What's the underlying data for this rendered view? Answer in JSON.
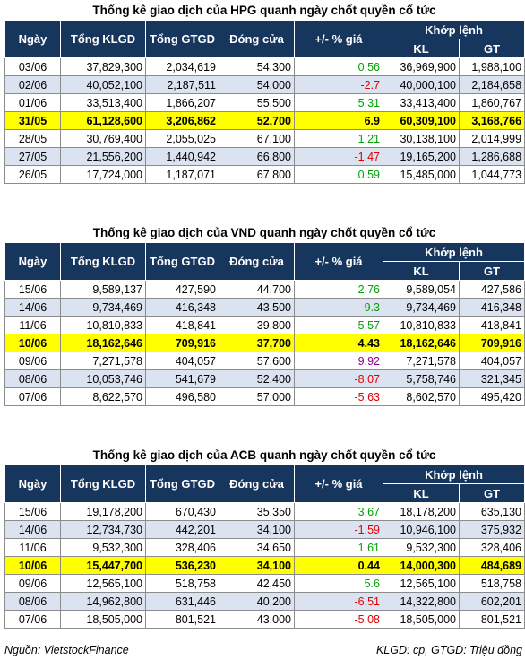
{
  "headers": {
    "date": "Ngày",
    "total_volume": "Tổng KLGD",
    "total_value": "Tổng GTGD",
    "close": "Đóng cửa",
    "change": "+/- % giá",
    "matched": "Khớp lệnh",
    "kl": "KL",
    "gt": "GT"
  },
  "tables": [
    {
      "title": "Thống kê giao dịch của HPG quanh ngày chốt quyền cổ tức",
      "highlight_index": 3,
      "rows": [
        {
          "date": "03/06",
          "klgd": "37,829,300",
          "gtgd": "2,034,619",
          "close": "54,300",
          "change": "0.56",
          "trend": "pos",
          "kl": "36,969,900",
          "gt": "1,988,100"
        },
        {
          "date": "02/06",
          "klgd": "40,052,100",
          "gtgd": "2,187,511",
          "close": "54,000",
          "change": "-2.7",
          "trend": "neg",
          "kl": "40,000,100",
          "gt": "2,184,658"
        },
        {
          "date": "01/06",
          "klgd": "33,513,400",
          "gtgd": "1,866,207",
          "close": "55,500",
          "change": "5.31",
          "trend": "pos",
          "kl": "33,413,400",
          "gt": "1,860,767"
        },
        {
          "date": "31/05",
          "klgd": "61,128,600",
          "gtgd": "3,206,862",
          "close": "52,700",
          "change": "6.9",
          "trend": "pos",
          "kl": "60,309,100",
          "gt": "3,168,766"
        },
        {
          "date": "28/05",
          "klgd": "30,769,400",
          "gtgd": "2,055,025",
          "close": "67,100",
          "change": "1.21",
          "trend": "pos",
          "kl": "30,138,100",
          "gt": "2,014,999"
        },
        {
          "date": "27/05",
          "klgd": "21,556,200",
          "gtgd": "1,440,942",
          "close": "66,800",
          "change": "-1.47",
          "trend": "neg",
          "kl": "19,165,200",
          "gt": "1,286,688"
        },
        {
          "date": "26/05",
          "klgd": "17,724,000",
          "gtgd": "1,187,071",
          "close": "67,800",
          "change": "0.59",
          "trend": "pos",
          "kl": "15,485,000",
          "gt": "1,044,773"
        }
      ]
    },
    {
      "title": "Thống kê giao dịch của VND quanh ngày chốt quyền cổ tức",
      "highlight_index": 3,
      "rows": [
        {
          "date": "15/06",
          "klgd": "9,589,137",
          "gtgd": "427,590",
          "close": "44,700",
          "change": "2.76",
          "trend": "pos",
          "kl": "9,589,054",
          "gt": "427,586"
        },
        {
          "date": "14/06",
          "klgd": "9,734,469",
          "gtgd": "416,348",
          "close": "43,500",
          "change": "9.3",
          "trend": "pos",
          "kl": "9,734,469",
          "gt": "416,348"
        },
        {
          "date": "11/06",
          "klgd": "10,810,833",
          "gtgd": "418,841",
          "close": "39,800",
          "change": "5.57",
          "trend": "pos",
          "kl": "10,810,833",
          "gt": "418,841"
        },
        {
          "date": "10/06",
          "klgd": "18,162,646",
          "gtgd": "709,916",
          "close": "37,700",
          "change": "4.43",
          "trend": "pos",
          "kl": "18,162,646",
          "gt": "709,916"
        },
        {
          "date": "09/06",
          "klgd": "7,271,578",
          "gtgd": "404,057",
          "close": "57,600",
          "change": "9.92",
          "trend": "ceil",
          "kl": "7,271,578",
          "gt": "404,057"
        },
        {
          "date": "08/06",
          "klgd": "10,053,746",
          "gtgd": "541,679",
          "close": "52,400",
          "change": "-8.07",
          "trend": "neg",
          "kl": "5,758,746",
          "gt": "321,345"
        },
        {
          "date": "07/06",
          "klgd": "8,622,570",
          "gtgd": "496,580",
          "close": "57,000",
          "change": "-5.63",
          "trend": "neg",
          "kl": "8,602,570",
          "gt": "495,420"
        }
      ]
    },
    {
      "title": "Thống kê giao dịch của ACB quanh ngày chốt quyền cổ tức",
      "highlight_index": 3,
      "rows": [
        {
          "date": "15/06",
          "klgd": "19,178,200",
          "gtgd": "670,430",
          "close": "35,350",
          "change": "3.67",
          "trend": "pos",
          "kl": "18,178,200",
          "gt": "635,130"
        },
        {
          "date": "14/06",
          "klgd": "12,734,730",
          "gtgd": "442,201",
          "close": "34,100",
          "change": "-1.59",
          "trend": "neg",
          "kl": "10,946,100",
          "gt": "375,932"
        },
        {
          "date": "11/06",
          "klgd": "9,532,300",
          "gtgd": "328,406",
          "close": "34,650",
          "change": "1.61",
          "trend": "pos",
          "kl": "9,532,300",
          "gt": "328,406"
        },
        {
          "date": "10/06",
          "klgd": "15,447,700",
          "gtgd": "536,230",
          "close": "34,100",
          "change": "0.44",
          "trend": "pos",
          "kl": "14,000,300",
          "gt": "484,689"
        },
        {
          "date": "09/06",
          "klgd": "12,565,100",
          "gtgd": "518,758",
          "close": "42,450",
          "change": "5.6",
          "trend": "pos",
          "kl": "12,565,100",
          "gt": "518,758"
        },
        {
          "date": "08/06",
          "klgd": "14,962,800",
          "gtgd": "631,446",
          "close": "40,200",
          "change": "-6.51",
          "trend": "neg",
          "kl": "14,322,800",
          "gt": "602,201"
        },
        {
          "date": "07/06",
          "klgd": "18,505,000",
          "gtgd": "801,521",
          "close": "43,000",
          "change": "-5.08",
          "trend": "neg",
          "kl": "18,505,000",
          "gt": "801,521"
        }
      ]
    }
  ],
  "footer": {
    "source": "Nguồn: VietstockFinance",
    "units": "KLGD: cp, GTGD: Triệu đồng"
  },
  "colors": {
    "header_bg": "#17365d",
    "highlight": "#ffff00",
    "alt_row": "#dbe3f0",
    "positive": "#00a000",
    "negative": "#e00000",
    "ceiling": "#8b008b"
  }
}
